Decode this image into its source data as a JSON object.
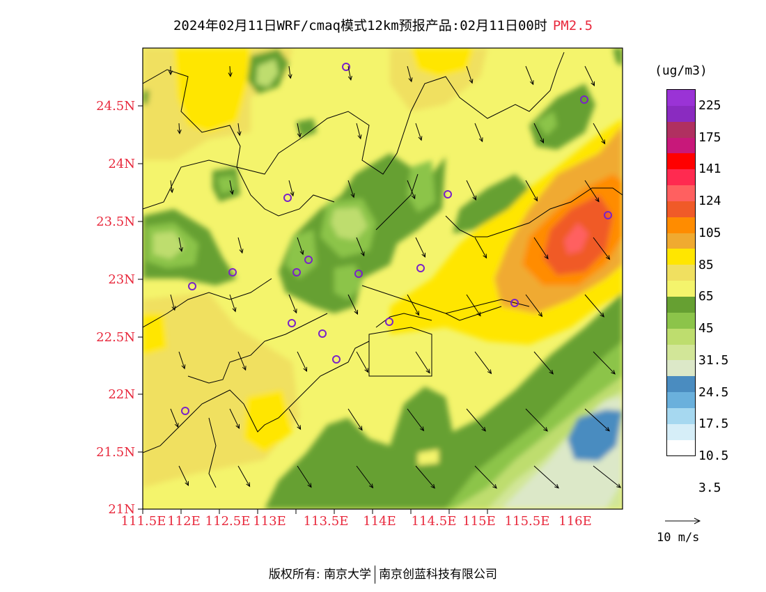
{
  "title": {
    "text": "2024年02月11日WRF/cmaq模式12km预报产品:02月11日00时",
    "pollutant": "PM2.5"
  },
  "axes": {
    "y_ticks": [
      "24.5N",
      "24N",
      "23.5N",
      "23N",
      "22.5N",
      "22N",
      "21.5N",
      "21N"
    ],
    "x_ticks": [
      "111.5E",
      "112E",
      "112.5E",
      "113E",
      "113.5E",
      "114E",
      "114.5E",
      "115E",
      "115.5E",
      "116E"
    ],
    "lon_range": [
      111.5,
      116.5
    ],
    "lat_range": [
      21,
      25
    ],
    "tick_color": "#e8283c"
  },
  "legend": {
    "unit": "(ug/m3)",
    "labels": [
      "225",
      "175",
      "141",
      "124",
      "105",
      "85",
      "65",
      "45",
      "31.5",
      "24.5",
      "17.5",
      "10.5",
      "3.5"
    ],
    "colors": [
      "#9a33d6",
      "#8a2bc0",
      "#b03060",
      "#c8187a",
      "#ff0000",
      "#ff2a50",
      "#ff6060",
      "#f05a28",
      "#ff8c00",
      "#f0aa30",
      "#ffe600",
      "#f0e060",
      "#f4f46c",
      "#66a032",
      "#8cc44a",
      "#bedd6e",
      "#d2e698",
      "#dce8c8",
      "#4a8cc0",
      "#6ab0dc",
      "#a6d8f0",
      "#d6eef8",
      "#ffffff"
    ]
  },
  "wind_reference": "10 m/s",
  "copyright": {
    "prefix": "版权所有:",
    "org1": "南京大学",
    "org2": "南京创蓝科技有限公司"
  }
}
